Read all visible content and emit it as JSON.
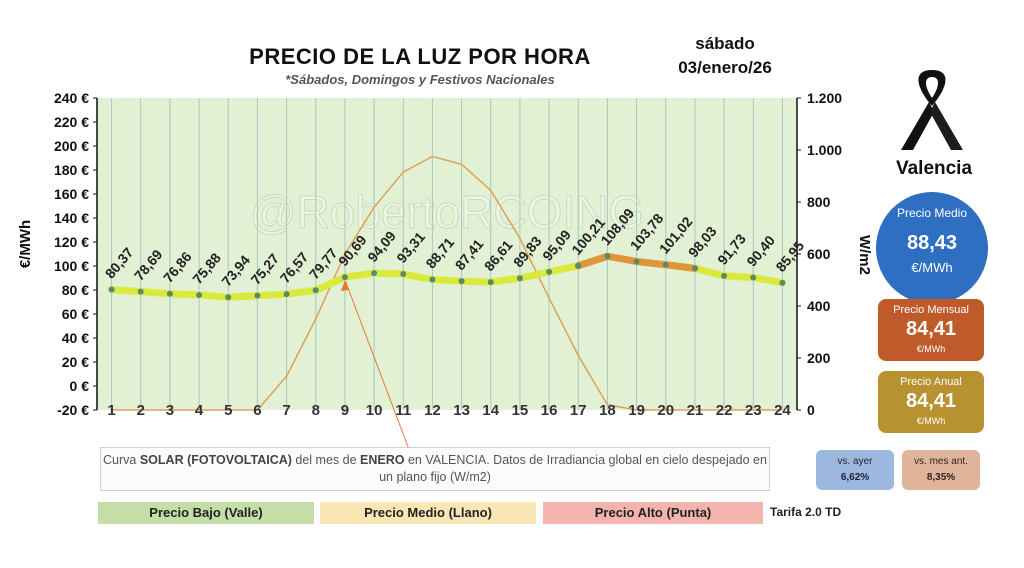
{
  "header": {
    "title": "PRECIO DE LA LUZ POR HORA",
    "subtitle": "*Sábados, Domingos y Festivos Nacionales",
    "day": "sábado",
    "date": "03/enero/26"
  },
  "watermark": "@RobertoRCOING",
  "sidebar": {
    "city": "Valencia",
    "precio_medio": {
      "label": "Precio Medio",
      "value": "88,43",
      "unit": "€/MWh",
      "color": "#2f6fc1"
    },
    "precio_mensual": {
      "label": "Precio Mensual",
      "value": "84,41",
      "unit": "€/MWh",
      "color": "#bf5a2a"
    },
    "precio_anual": {
      "label": "Precio Anual",
      "value": "84,41",
      "unit": "€/MWh",
      "color": "#b8922f"
    },
    "vs_ayer": {
      "label": "vs. ayer",
      "value": "6,62%"
    },
    "vs_mes": {
      "label": "vs. mes ant.",
      "value": "8,35%"
    }
  },
  "note": {
    "pre": "Curva ",
    "bold1": "SOLAR (FOTOVOLTAICA)",
    "mid": " del mes de ",
    "bold2": "ENERO",
    "post": " en VALENCIA. Datos de Irradiancia global en cielo despejado en un plano fijo (W/m2)"
  },
  "legend": {
    "valle": {
      "label": "Precio Bajo (Valle)",
      "color": "#c5dea8"
    },
    "llano": {
      "label": "Precio Medio (Llano)",
      "color": "#fbe6b6"
    },
    "punta": {
      "label": "Precio Alto (Punta)",
      "color": "#f4b4ae"
    },
    "tarifa": "Tarifa 2.0 TD"
  },
  "chart_data": {
    "type": "line",
    "x": [
      1,
      2,
      3,
      4,
      5,
      6,
      7,
      8,
      9,
      10,
      11,
      12,
      13,
      14,
      15,
      16,
      17,
      18,
      19,
      20,
      21,
      22,
      23,
      24
    ],
    "series": [
      {
        "values": [
          80.37,
          78.69,
          76.86,
          75.88,
          73.94,
          75.27,
          76.57,
          79.77,
          90.69,
          94.09,
          93.31,
          88.71,
          87.41,
          86.61,
          89.83,
          95.09,
          100.21,
          108.09,
          103.78,
          101.02,
          98.03,
          91.73,
          90.4,
          85.95
        ],
        "labels": [
          "80,37",
          "78,69",
          "76,86",
          "75,88",
          "73,94",
          "75,27",
          "76,57",
          "79,77",
          "90,69",
          "94,09",
          "93,31",
          "88,71",
          "87,41",
          "86,61",
          "89,83",
          "95,09",
          "100,21",
          "108,09",
          "103,78",
          "101,02",
          "98,03",
          "91,73",
          "90,40",
          "85,95"
        ],
        "axis": "left"
      },
      {
        "values": [
          0,
          0,
          0,
          0,
          0,
          0,
          130,
          350,
          600,
          780,
          915,
          975,
          945,
          845,
          660,
          430,
          210,
          20,
          0,
          0,
          0,
          0,
          0,
          0
        ],
        "axis": "right"
      }
    ],
    "ylabel": "€/MWh",
    "y2label": "W/m2",
    "ylim": [
      -20,
      240
    ],
    "yticks": [
      -20,
      0,
      20,
      40,
      60,
      80,
      100,
      120,
      140,
      160,
      180,
      200,
      220,
      240
    ],
    "ytick_labels": [
      "-20 €",
      "0 €",
      "20 €",
      "40 €",
      "60 €",
      "80 €",
      "100 €",
      "120 €",
      "140 €",
      "160 €",
      "180 €",
      "200 €",
      "220 €",
      "240 €"
    ],
    "y2lim": [
      0,
      1200
    ],
    "y2ticks": [
      0,
      200,
      400,
      600,
      800,
      1000,
      1200
    ],
    "y2tick_labels": [
      "0",
      "200",
      "400",
      "600",
      "800",
      "1.000",
      "1.200"
    ],
    "grid": true,
    "colors": {
      "plot_bg": "#e2f0d4",
      "price_line": "#d9ea3c",
      "peak_line": "#e07a3a",
      "marker": "#5a8a6e",
      "solar": "#d9a35a",
      "vgrid": "#a8c8be"
    }
  }
}
